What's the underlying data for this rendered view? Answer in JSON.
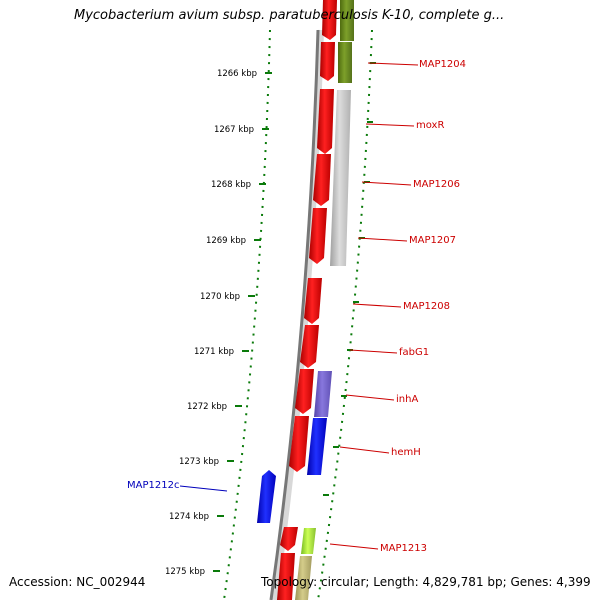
{
  "title": "Mycobacterium avium subsp. paratuberculosis K-10, complete g...",
  "footer": {
    "accession": "Accession: NC_002944",
    "topology": "Topology: circular; Length: 4,829,781 bp; Genes: 4,399"
  },
  "colors": {
    "forward_red": "#ee0000",
    "reverse_blue": "#1010ee",
    "olive": "#6b8e23",
    "grey": "#b8b8b8",
    "purple": "#7766cc",
    "lime": "#99dd33",
    "khaki": "#b8b070",
    "tick_green": "#0a7a0a",
    "backbone": "#777777",
    "label_red": "#cc0000",
    "label_blue": "#0000bb"
  },
  "ticks": [
    "1266 kbp",
    "1267 kbp",
    "1268 kbp",
    "1269 kbp",
    "1270 kbp",
    "1271 kbp",
    "1272 kbp",
    "1273 kbp",
    "1274 kbp",
    "1275 kbp"
  ],
  "genes": [
    {
      "label": "MAP1204"
    },
    {
      "label": "moxR"
    },
    {
      "label": "MAP1206"
    },
    {
      "label": "MAP1207"
    },
    {
      "label": "MAP1208"
    },
    {
      "label": "fabG1"
    },
    {
      "label": "inhA"
    },
    {
      "label": "hemH"
    },
    {
      "label": "MAP1212c"
    },
    {
      "label": "MAP1213"
    }
  ]
}
